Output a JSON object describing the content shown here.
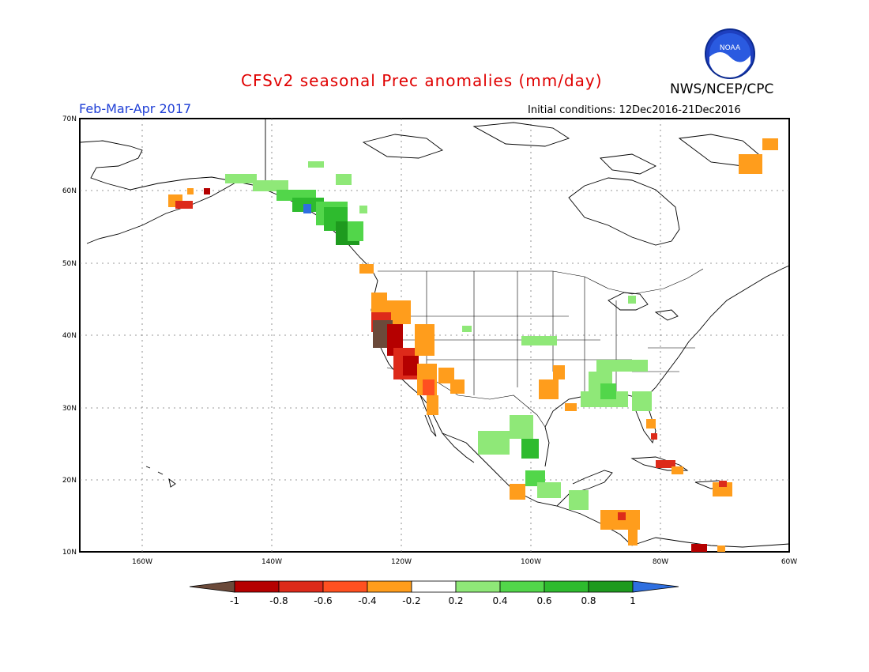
{
  "header": {
    "title": "CFSv2 seasonal Prec anomalies (mm/day)",
    "agency": "NWS/NCEP/CPC",
    "logo_text": "NOAA",
    "season": "Feb-Mar-Apr 2017",
    "initial_conditions": "Initial conditions: 12Dec2016-21Dec2016"
  },
  "axes": {
    "lat_labels": [
      "70N",
      "60N",
      "50N",
      "40N",
      "30N",
      "20N",
      "10N"
    ],
    "lon_labels": [
      "160W",
      "140W",
      "120W",
      "100W",
      "80W",
      "60W"
    ]
  },
  "colorbar": {
    "labels": [
      "-1",
      "-0.8",
      "-0.6",
      "-0.4",
      "-0.2",
      "0.2",
      "0.4",
      "0.6",
      "0.8",
      "1"
    ],
    "colors": [
      "#6b4a3a",
      "#b50000",
      "#dd2a1a",
      "#ff5020",
      "#ff9d1c",
      "#ffffff",
      "#8fe878",
      "#52d64a",
      "#2ebb2e",
      "#1e9a1e",
      "#2f6fe0"
    ]
  }
}
